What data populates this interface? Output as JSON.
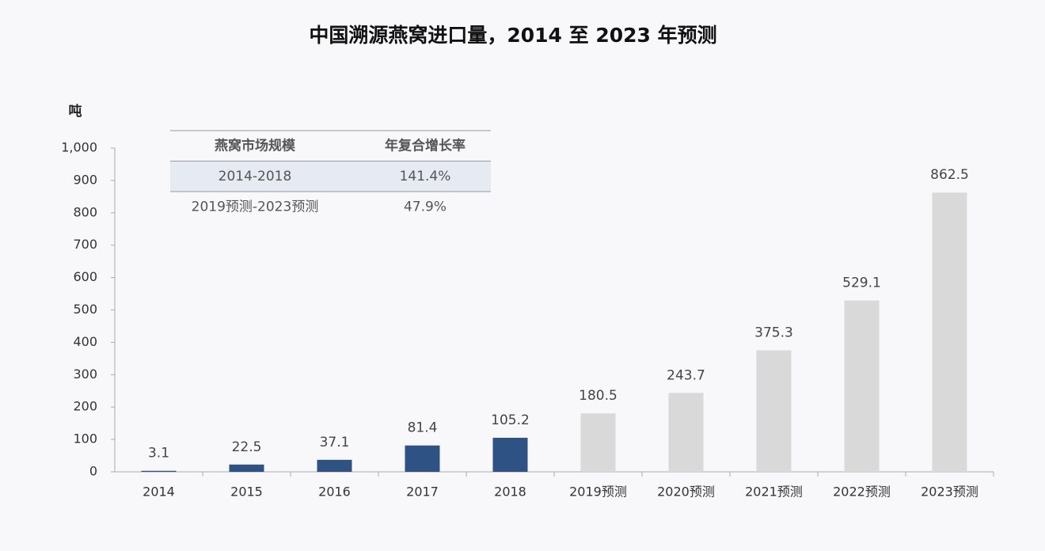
{
  "chart_data": {
    "type": "bar",
    "title": "中国溯源燕窝进口量，2014 至 2023 年预测",
    "y_label": "吨",
    "categories": [
      "2014",
      "2015",
      "2016",
      "2017",
      "2018",
      "2019预测",
      "2020预测",
      "2021预测",
      "2022预测",
      "2023预测"
    ],
    "values": [
      3.1,
      22.5,
      37.1,
      81.4,
      105.2,
      180.5,
      243.7,
      375.3,
      529.1,
      862.5
    ],
    "colors": [
      "#2e5283",
      "#2e5283",
      "#2e5283",
      "#2e5283",
      "#2e5283",
      "#d9d9d9",
      "#d9d9d9",
      "#d9d9d9",
      "#d9d9d9",
      "#d9d9d9"
    ],
    "ylim": [
      0,
      1000
    ],
    "yticks": [
      0,
      100,
      200,
      300,
      400,
      500,
      600,
      700,
      800,
      900,
      {
        "value": 1000,
        "label": "1,000"
      }
    ],
    "grid": false,
    "table": {
      "header": [
        "燕窝市场规模",
        "年复合增长率"
      ],
      "rows": [
        [
          "2014-2018",
          "141.4%"
        ],
        [
          "2019预测-2023预测",
          "47.9%"
        ]
      ]
    }
  }
}
